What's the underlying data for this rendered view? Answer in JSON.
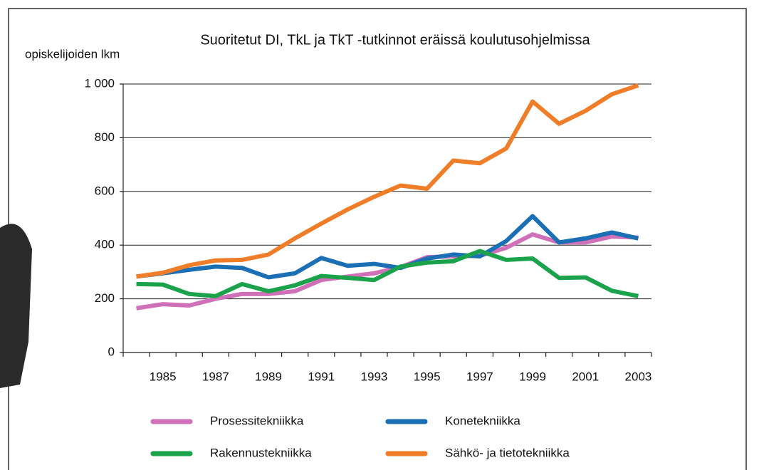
{
  "chart_data": {
    "type": "line",
    "title": "Suoritetut DI, TkL ja TkT -tutkinnot eräissä koulutusohjelmissa",
    "y_label": "opiskelijoiden lkm",
    "categories": [
      null,
      "1985",
      null,
      "1987",
      null,
      "1989",
      null,
      "1991",
      null,
      "1993",
      null,
      "1995",
      null,
      "1997",
      null,
      "1999",
      null,
      "2001",
      null,
      "2003"
    ],
    "ylim": [
      0,
      1000
    ],
    "yticks": [
      0,
      200,
      400,
      600,
      800,
      {
        "value": 1000,
        "label": "1 000"
      }
    ],
    "grid": true,
    "series": [
      {
        "name": "Prosessitekniikka",
        "color": "#d070b8",
        "values": [
          165,
          180,
          175,
          200,
          218,
          218,
          228,
          270,
          283,
          295,
          318,
          355,
          358,
          360,
          390,
          440,
          410,
          410,
          432,
          428
        ]
      },
      {
        "name": "Konetekniikka",
        "color": "#1a6fb5",
        "values": [
          283,
          295,
          308,
          320,
          315,
          280,
          295,
          352,
          323,
          330,
          315,
          350,
          365,
          358,
          415,
          508,
          410,
          425,
          447,
          425
        ]
      },
      {
        "name": "Rakennustekniikka",
        "color": "#1aa34a",
        "values": [
          255,
          253,
          218,
          210,
          255,
          228,
          250,
          285,
          278,
          270,
          320,
          335,
          340,
          378,
          345,
          350,
          278,
          280,
          230,
          210
        ]
      },
      {
        "name": "Sähkö- ja tietotekniikka",
        "color": "#f07e28",
        "values": [
          283,
          297,
          325,
          343,
          345,
          365,
          425,
          480,
          533,
          580,
          622,
          610,
          715,
          705,
          760,
          935,
          852,
          900,
          962,
          995
        ]
      }
    ]
  }
}
